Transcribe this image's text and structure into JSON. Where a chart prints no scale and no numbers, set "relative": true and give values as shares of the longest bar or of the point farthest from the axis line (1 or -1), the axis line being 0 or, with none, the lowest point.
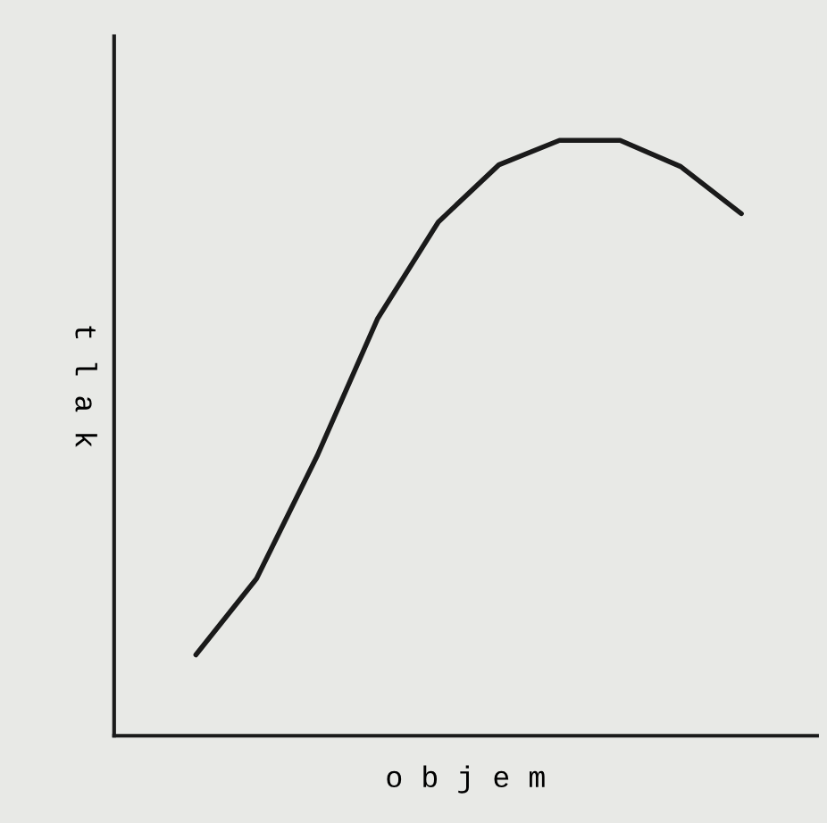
{
  "chart_data": {
    "type": "line",
    "relative": true,
    "xlabel": "o b j e m",
    "ylabel": "t l a k",
    "categories": [
      null,
      null,
      null,
      null,
      null,
      null,
      null,
      null,
      null,
      null
    ],
    "series": [
      {
        "color": "#1a1a1a",
        "values": [
          0.136,
          0.264,
          0.47,
          0.701,
          0.863,
          0.959,
          1.0,
          1.0,
          0.956,
          0.877
        ]
      }
    ],
    "grid": false,
    "legend": false,
    "tick_labels": false
  }
}
